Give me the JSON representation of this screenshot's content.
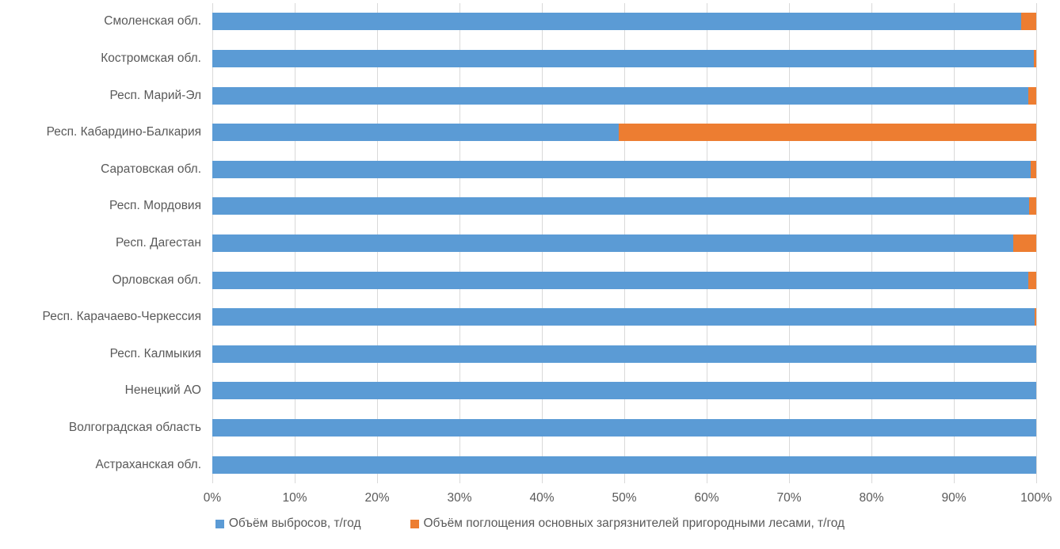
{
  "chart_data": {
    "type": "bar",
    "orientation": "horizontal",
    "stacked": true,
    "percent_stacked": true,
    "title": "",
    "xlabel": "",
    "ylabel": "",
    "xlim": [
      0,
      100
    ],
    "x_ticks": [
      "0%",
      "10%",
      "20%",
      "30%",
      "40%",
      "50%",
      "60%",
      "70%",
      "80%",
      "90%",
      "100%"
    ],
    "grid": "vertical",
    "legend_position": "bottom",
    "categories": [
      "Смоленская обл.",
      "Костромская обл.",
      "Респ. Марий-Эл",
      "Респ. Кабардино-Балкария",
      "Саратовская обл.",
      "Респ. Мордовия",
      "Респ. Дагестан",
      "Орловская обл.",
      "Респ. Карачаево-Черкессия",
      "Респ. Калмыкия",
      "Ненецкий АО",
      "Волгоградская область",
      "Астраханская обл."
    ],
    "series": [
      {
        "name": "Объём выбросов, т/год",
        "color": "#5B9BD5",
        "values": [
          98.2,
          99.7,
          99.0,
          49.3,
          99.3,
          99.1,
          97.2,
          99.0,
          99.8,
          100,
          100,
          100,
          100
        ]
      },
      {
        "name": "Объём поглощения основных загрязнителей пригородными лесами, т/год",
        "color": "#ED7D31",
        "values": [
          1.8,
          0.3,
          1.0,
          50.7,
          0.7,
          0.9,
          2.8,
          1.0,
          0.2,
          0,
          0,
          0,
          0
        ]
      }
    ]
  },
  "colors": {
    "gridline": "#D9D9D9",
    "axis_text": "#595959",
    "background": "#FFFFFF"
  }
}
